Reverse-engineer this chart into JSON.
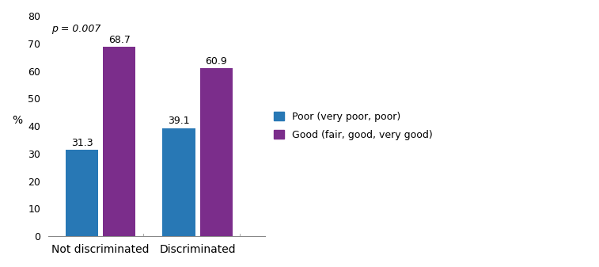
{
  "groups": [
    "Not discriminated",
    "Discriminated"
  ],
  "poor_values": [
    31.3,
    39.1
  ],
  "good_values": [
    68.7,
    60.9
  ],
  "poor_color": "#2878b5",
  "good_color": "#7b2d8b",
  "ylabel": "%",
  "ylim": [
    0,
    80
  ],
  "yticks": [
    0,
    10,
    20,
    30,
    40,
    50,
    60,
    70,
    80
  ],
  "annotation": "p = 0.007",
  "legend_poor": "Poor (very poor, poor)",
  "legend_good": "Good (fair, good, very good)",
  "bar_width": 0.22,
  "group_centers": [
    0.35,
    1.0
  ],
  "bar_gap": 0.03,
  "xlim": [
    0.0,
    1.45
  ]
}
